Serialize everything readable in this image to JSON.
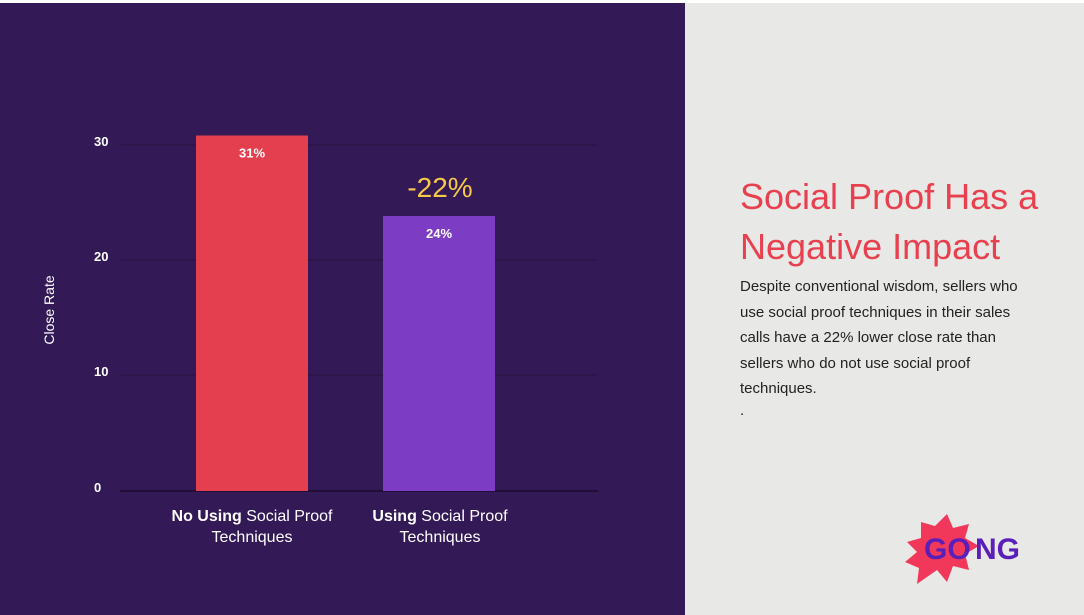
{
  "chart_data": {
    "type": "bar",
    "categories": [
      "No Using Social Proof Techniques",
      "Using Social Proof Techniques"
    ],
    "category_parts": [
      {
        "bold": "No Using",
        "rest": " Social Proof",
        "line2": "Techniques"
      },
      {
        "bold": "Using",
        "rest": " Social Proof",
        "line2": "Techniques"
      }
    ],
    "values": [
      31,
      24
    ],
    "data_labels": [
      "31%",
      "24%"
    ],
    "bar_colors": [
      "#e43f4f",
      "#7d3cc4"
    ],
    "ylabel": "Close Rate",
    "ylim": [
      0,
      31
    ],
    "yticks": [
      0,
      10,
      20,
      30
    ],
    "grid": true,
    "annotation": "-22%",
    "annotation_color": "#f7c948"
  },
  "text": {
    "title": "Social Proof Has a Negative Impact",
    "body": "Despite conventional wisdom, sellers who use social proof techniques in their sales calls have a 22% lower close rate than sellers who do not use social proof techniques.",
    "dot": "."
  },
  "logo": {
    "text_part1": "GO",
    "text_part2": "NG",
    "burst_color": "#f2385a",
    "text_color": "#5a1fb8"
  },
  "colors": {
    "panel": "#331a56",
    "background": "#e8e8e6",
    "accent": "#e8404f"
  }
}
